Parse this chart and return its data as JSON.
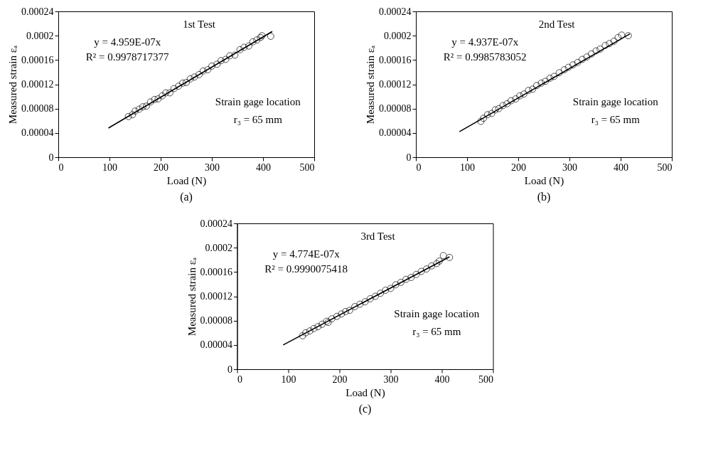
{
  "chart_data": [
    {
      "type": "scatter",
      "title": "1st Test",
      "xlabel": "Load (N)",
      "ylabel": "Measured strain εₐ",
      "xlim": [
        0,
        500
      ],
      "xticks": [
        0,
        100,
        200,
        300,
        400,
        500
      ],
      "ylim": [
        0,
        0.00024
      ],
      "yticks": [
        {
          "value": 0,
          "label": "0"
        },
        {
          "value": 4e-05,
          "label": "0.00004"
        },
        {
          "value": 8e-05,
          "label": "0.00008"
        },
        {
          "value": 0.00012,
          "label": "0.00012"
        },
        {
          "value": 0.00016,
          "label": "0.00016"
        },
        {
          "value": 0.0002,
          "label": "0.0002"
        },
        {
          "value": 0.00024,
          "label": "0.00024"
        }
      ],
      "grid": false,
      "annotations": [
        "y = 4.959E-07x",
        "R² = 0.9978717377",
        "Strain gage location",
        "r₃ = 65 mm",
        "(a)"
      ],
      "series": [
        {
          "color": "#000000",
          "marker": "circle",
          "x": [
            137,
            145,
            150,
            158,
            165,
            172,
            180,
            188,
            195,
            203,
            210,
            218,
            226,
            235,
            243,
            250,
            258,
            266,
            275,
            283,
            292,
            300,
            310,
            318,
            327,
            335,
            345,
            355,
            363,
            372,
            380,
            388,
            395,
            398,
            415
          ],
          "values": [
            6.7e-05,
            7e-05,
            7.6e-05,
            7.9e-05,
            8.3e-05,
            8.4e-05,
            9.1e-05,
            9.5e-05,
            9.6e-05,
            0.000101,
            0.000106,
            0.000106,
            0.000113,
            0.000117,
            0.000122,
            0.000123,
            0.000129,
            0.000132,
            0.000136,
            0.000142,
            0.000144,
            0.00015,
            0.000153,
            0.000159,
            0.000161,
            0.000167,
            0.000168,
            0.000177,
            0.000181,
            0.000183,
            0.00019,
            0.000193,
            0.000197,
            0.0002,
            0.000199
          ]
        },
        {
          "type": "line",
          "color": "#000000",
          "x": [
            98,
            418
          ],
          "values": [
            4.8e-05,
            0.000207
          ]
        }
      ]
    },
    {
      "type": "scatter",
      "title": "2nd Test",
      "xlabel": "Load (N)",
      "ylabel": "Measured strain εₐ",
      "xlim": [
        0,
        500
      ],
      "xticks": [
        0,
        100,
        200,
        300,
        400,
        500
      ],
      "ylim": [
        0,
        0.00024
      ],
      "yticks": [
        {
          "value": 0,
          "label": "0"
        },
        {
          "value": 4e-05,
          "label": "0.00004"
        },
        {
          "value": 8e-05,
          "label": "0.00008"
        },
        {
          "value": 0.00012,
          "label": "0.00012"
        },
        {
          "value": 0.00016,
          "label": "0.00016"
        },
        {
          "value": 0.0002,
          "label": "0.0002"
        },
        {
          "value": 0.00024,
          "label": "0.00024"
        }
      ],
      "grid": false,
      "annotations": [
        "y = 4.937E-07x",
        "R² = 0.9985783052",
        "Strain gage location",
        "r₃ = 65 mm",
        "(b)"
      ],
      "series": [
        {
          "color": "#000000",
          "marker": "circle",
          "x": [
            127,
            132,
            140,
            148,
            155,
            162,
            170,
            178,
            186,
            195,
            203,
            211,
            220,
            228,
            236,
            245,
            253,
            262,
            270,
            280,
            290,
            298,
            307,
            316,
            325,
            334,
            343,
            352,
            360,
            370,
            378,
            387,
            395,
            402,
            415
          ],
          "values": [
            5.9e-05,
            6.4e-05,
            7e-05,
            7.2e-05,
            7.8e-05,
            8e-05,
            8.5e-05,
            8.8e-05,
            9.3e-05,
            9.6e-05,
            0.000101,
            0.000104,
            0.00011,
            0.000112,
            0.000118,
            0.000122,
            0.000125,
            0.00013,
            0.000133,
            0.000139,
            0.000144,
            0.000148,
            0.000152,
            0.000156,
            0.000161,
            0.000165,
            0.00017,
            0.000175,
            0.000178,
            0.000184,
            0.000187,
            0.000191,
            0.000197,
            0.000201,
            0.0002
          ]
        },
        {
          "type": "line",
          "color": "#000000",
          "x": [
            85,
            418
          ],
          "values": [
            4.2e-05,
            0.000203
          ]
        }
      ]
    },
    {
      "type": "scatter",
      "title": "3rd Test",
      "xlabel": "Load (N)",
      "ylabel": "Measured strain εₐ",
      "xlim": [
        0,
        500
      ],
      "xticks": [
        0,
        100,
        200,
        300,
        400,
        500
      ],
      "ylim": [
        0,
        0.00024
      ],
      "yticks": [
        {
          "value": 0,
          "label": "0"
        },
        {
          "value": 4e-05,
          "label": "0.00004"
        },
        {
          "value": 8e-05,
          "label": "0.00008"
        },
        {
          "value": 0.00012,
          "label": "0.00012"
        },
        {
          "value": 0.00016,
          "label": "0.00016"
        },
        {
          "value": 0.0002,
          "label": "0.0002"
        },
        {
          "value": 0.00024,
          "label": "0.00024"
        }
      ],
      "grid": false,
      "annotations": [
        "y = 4.774E-07x",
        "R² = 0.9990075418",
        "Strain gage location",
        "r₃ = 65 mm",
        "(c)"
      ],
      "series": [
        {
          "color": "#000000",
          "marker": "circle",
          "x": [
            128,
            134,
            142,
            150,
            158,
            166,
            175,
            178,
            185,
            195,
            204,
            212,
            220,
            230,
            240,
            250,
            260,
            270,
            280,
            290,
            300,
            310,
            320,
            330,
            340,
            350,
            360,
            370,
            380,
            390,
            395,
            403,
            415
          ],
          "values": [
            5.5e-05,
            6e-05,
            6.3e-05,
            6.7e-05,
            7e-05,
            7.4e-05,
            7.9e-05,
            7.7e-05,
            8.3e-05,
            8.7e-05,
            9.1e-05,
            9.5e-05,
            9.7e-05,
            0.000103,
            0.000107,
            0.000111,
            0.000116,
            0.00012,
            0.000125,
            0.00013,
            0.000133,
            0.000139,
            0.000143,
            0.000148,
            0.000151,
            0.000156,
            0.000161,
            0.000165,
            0.00017,
            0.000174,
            0.000178,
            0.000187,
            0.000184
          ]
        },
        {
          "type": "line",
          "color": "#000000",
          "x": [
            90,
            415
          ],
          "values": [
            4e-05,
            0.000185
          ]
        }
      ]
    }
  ]
}
